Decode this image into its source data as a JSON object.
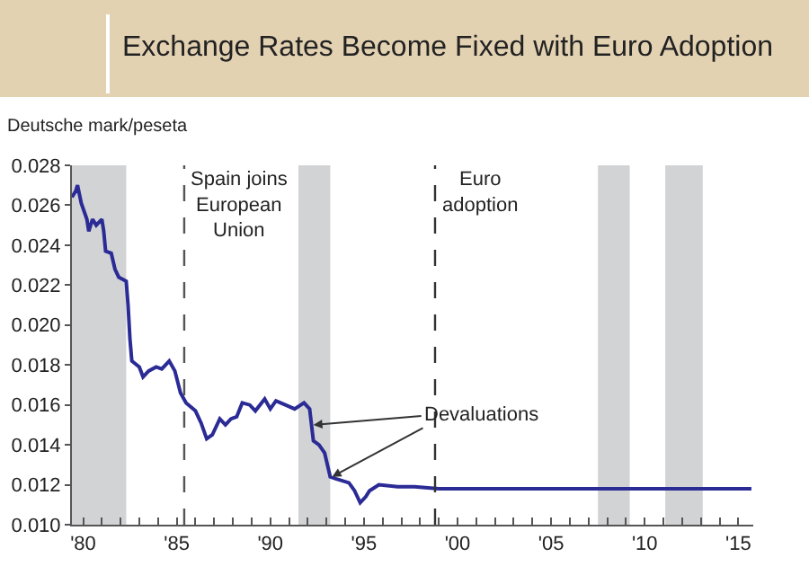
{
  "chart_data": {
    "type": "line",
    "title": "Exchange Rates Become Fixed with Euro Adoption",
    "ylabel": "Deutsche mark/peseta",
    "series": [
      {
        "color": "#2b2b96",
        "x": [
          1979.4,
          1979.6,
          1979.7,
          1979.9,
          1980.2,
          1980.3,
          1980.5,
          1980.7,
          1981.0,
          1981.1,
          1981.2,
          1981.5,
          1981.7,
          1981.9,
          1982.3,
          1982.4,
          1982.5,
          1982.6,
          1983.0,
          1983.2,
          1983.5,
          1983.9,
          1984.2,
          1984.6,
          1984.9,
          1985.2,
          1985.5,
          1986.0,
          1986.3,
          1986.6,
          1986.9,
          1987.3,
          1987.6,
          1987.9,
          1988.2,
          1988.5,
          1988.9,
          1989.2,
          1989.7,
          1990.0,
          1990.3,
          1990.8,
          1991.3,
          1991.8,
          1992.1,
          1992.3,
          1992.6,
          1992.9,
          1993.2,
          1993.5,
          1994.2,
          1994.5,
          1994.8,
          1995.1,
          1995.3,
          1995.8,
          1996.8,
          1997.7,
          1999.0,
          2005.0,
          2010.0,
          2015.7
        ],
        "values": [
          0.0264,
          0.0267,
          0.027,
          0.0261,
          0.0253,
          0.0247,
          0.0253,
          0.025,
          0.0253,
          0.0247,
          0.0237,
          0.0236,
          0.0228,
          0.0224,
          0.0222,
          0.021,
          0.0193,
          0.0182,
          0.0179,
          0.0174,
          0.0177,
          0.0179,
          0.0178,
          0.0182,
          0.0177,
          0.0166,
          0.0161,
          0.0157,
          0.0151,
          0.0143,
          0.0145,
          0.0153,
          0.015,
          0.0153,
          0.0154,
          0.0161,
          0.016,
          0.0157,
          0.0163,
          0.0158,
          0.0162,
          0.016,
          0.0158,
          0.0161,
          0.0158,
          0.0142,
          0.014,
          0.0136,
          0.0124,
          0.0123,
          0.0121,
          0.0117,
          0.0111,
          0.0114,
          0.0117,
          0.012,
          0.0119,
          0.0119,
          0.0118,
          0.0118,
          0.0118,
          0.0118
        ]
      }
    ],
    "xlim": [
      1979.4,
      2015.8
    ],
    "xticks": [
      {
        "value": 1980,
        "label": "'80"
      },
      {
        "value": 1981,
        "label": null
      },
      {
        "value": 1982,
        "label": null
      },
      {
        "value": 1983,
        "label": null
      },
      {
        "value": 1984,
        "label": null
      },
      {
        "value": 1985,
        "label": "'85"
      },
      {
        "value": 1986,
        "label": null
      },
      {
        "value": 1987,
        "label": null
      },
      {
        "value": 1988,
        "label": null
      },
      {
        "value": 1989,
        "label": null
      },
      {
        "value": 1990,
        "label": "'90"
      },
      {
        "value": 1991,
        "label": null
      },
      {
        "value": 1992,
        "label": null
      },
      {
        "value": 1993,
        "label": null
      },
      {
        "value": 1994,
        "label": null
      },
      {
        "value": 1995,
        "label": "'95"
      },
      {
        "value": 1996,
        "label": null
      },
      {
        "value": 1997,
        "label": null
      },
      {
        "value": 1998,
        "label": null
      },
      {
        "value": 1999,
        "label": null
      },
      {
        "value": 2000,
        "label": "'00"
      },
      {
        "value": 2001,
        "label": null
      },
      {
        "value": 2002,
        "label": null
      },
      {
        "value": 2003,
        "label": null
      },
      {
        "value": 2004,
        "label": null
      },
      {
        "value": 2005,
        "label": "'05"
      },
      {
        "value": 2006,
        "label": null
      },
      {
        "value": 2007,
        "label": null
      },
      {
        "value": 2008,
        "label": null
      },
      {
        "value": 2009,
        "label": null
      },
      {
        "value": 2010,
        "label": "'10"
      },
      {
        "value": 2011,
        "label": null
      },
      {
        "value": 2012,
        "label": null
      },
      {
        "value": 2013,
        "label": null
      },
      {
        "value": 2014,
        "label": null
      },
      {
        "value": 2015,
        "label": "'15"
      }
    ],
    "ylim": [
      0.01,
      0.028
    ],
    "yticks": [
      {
        "value": 0.01,
        "label": "0.010"
      },
      {
        "value": 0.012,
        "label": "0.012"
      },
      {
        "value": 0.014,
        "label": "0.014"
      },
      {
        "value": 0.016,
        "label": "0.016"
      },
      {
        "value": 0.018,
        "label": "0.018"
      },
      {
        "value": 0.02,
        "label": "0.020"
      },
      {
        "value": 0.022,
        "label": "0.022"
      },
      {
        "value": 0.024,
        "label": "0.024"
      },
      {
        "value": 0.026,
        "label": "0.026"
      },
      {
        "value": 0.028,
        "label": "0.028"
      }
    ],
    "ref_lines": [
      {
        "axis": "x",
        "value": 1985.4,
        "label": "Spain joins\nEuropean\nUnion",
        "color": "#555555",
        "line_style": "dashed"
      },
      {
        "axis": "x",
        "value": 1998.8,
        "label": "Euro\nadoption",
        "color": "#333333",
        "line_style": "dashed"
      }
    ],
    "bands": [
      {
        "axis": "x",
        "from": 1979.4,
        "to": 1982.3,
        "color": "#d2d3d5"
      },
      {
        "axis": "x",
        "from": 1991.5,
        "to": 1993.2,
        "color": "#d2d3d5"
      },
      {
        "axis": "x",
        "from": 2007.5,
        "to": 2009.2,
        "color": "#d2d3d5"
      },
      {
        "axis": "x",
        "from": 2011.1,
        "to": 2013.1,
        "color": "#d2d3d5"
      }
    ],
    "annotations": [
      {
        "text": "Devaluations",
        "x": 1992.3,
        "y": 0.015
      }
    ],
    "grid": false,
    "marker": "none",
    "line_style": "solid"
  }
}
